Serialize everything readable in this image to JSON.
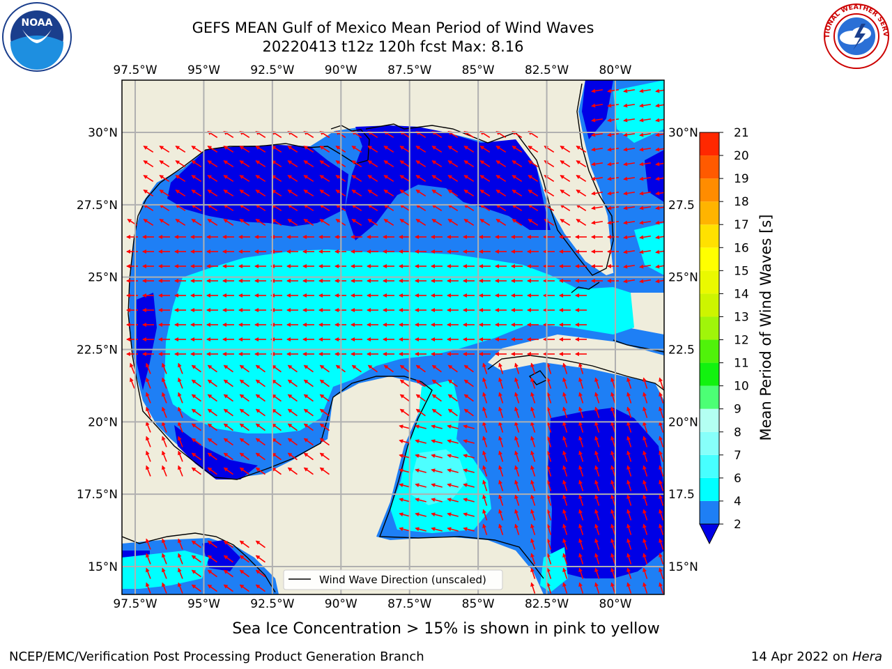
{
  "header": {
    "title_line1": "GEFS MEAN Gulf of Mexico Mean Period of Wind Waves",
    "title_line2": "20220413 t12z 120h fcst   Max: 8.16"
  },
  "logos": {
    "left": {
      "icon": "noaa-logo-icon",
      "text": "NOAA"
    },
    "right": {
      "icon": "nws-logo-icon",
      "text": "NATIONAL WEATHER SERVICE"
    }
  },
  "map": {
    "lon_labels": [
      "97.5°W",
      "95°W",
      "92.5°W",
      "90°W",
      "87.5°W",
      "85°W",
      "82.5°W",
      "80°W"
    ],
    "lat_labels_left": [
      "30°N",
      "27.5°N",
      "25°N",
      "22.5°N",
      "20°N",
      "17.5°N",
      "15°N"
    ],
    "lat_labels_right": [
      "30°N",
      "27.5",
      "25°N",
      "22.5",
      "20°N",
      "17.5",
      "15°N"
    ],
    "legend_text": "Wind Wave Direction (unscaled)",
    "colors": {
      "land": "#efeddc",
      "blue_2": "#1e7ff5",
      "blue_dark": "#0000e6",
      "cyan_4": "#00ffff",
      "cyan_6": "#4dffff",
      "arrow": "#ff0000"
    }
  },
  "colorbar": {
    "label": "Mean Period of Wind Waves [s]",
    "ticks": [
      "2",
      "4",
      "6",
      "7",
      "8",
      "9",
      "10",
      "11",
      "12",
      "13",
      "14",
      "15",
      "16",
      "17",
      "18",
      "19",
      "20",
      "21"
    ],
    "colors": [
      "#1e7ff5",
      "#00ffff",
      "#47ffff",
      "#87fffa",
      "#b3fff2",
      "#4cff75",
      "#12f20f",
      "#50f20a",
      "#a0f50a",
      "#cdf500",
      "#eaf900",
      "#ffff00",
      "#ffe100",
      "#ffb400",
      "#ff8c00",
      "#ff5a00",
      "#ff2800"
    ],
    "under_color": "#0000e6",
    "over_color": "#ff0000"
  },
  "footer": {
    "note": "Sea Ice Concentration > 15% is shown in pink to yellow",
    "left": "NCEP/EMC/Verification Post Processing Product Generation Branch",
    "right_prefix": "14 Apr 2022 on ",
    "right_machine": "Hera"
  }
}
